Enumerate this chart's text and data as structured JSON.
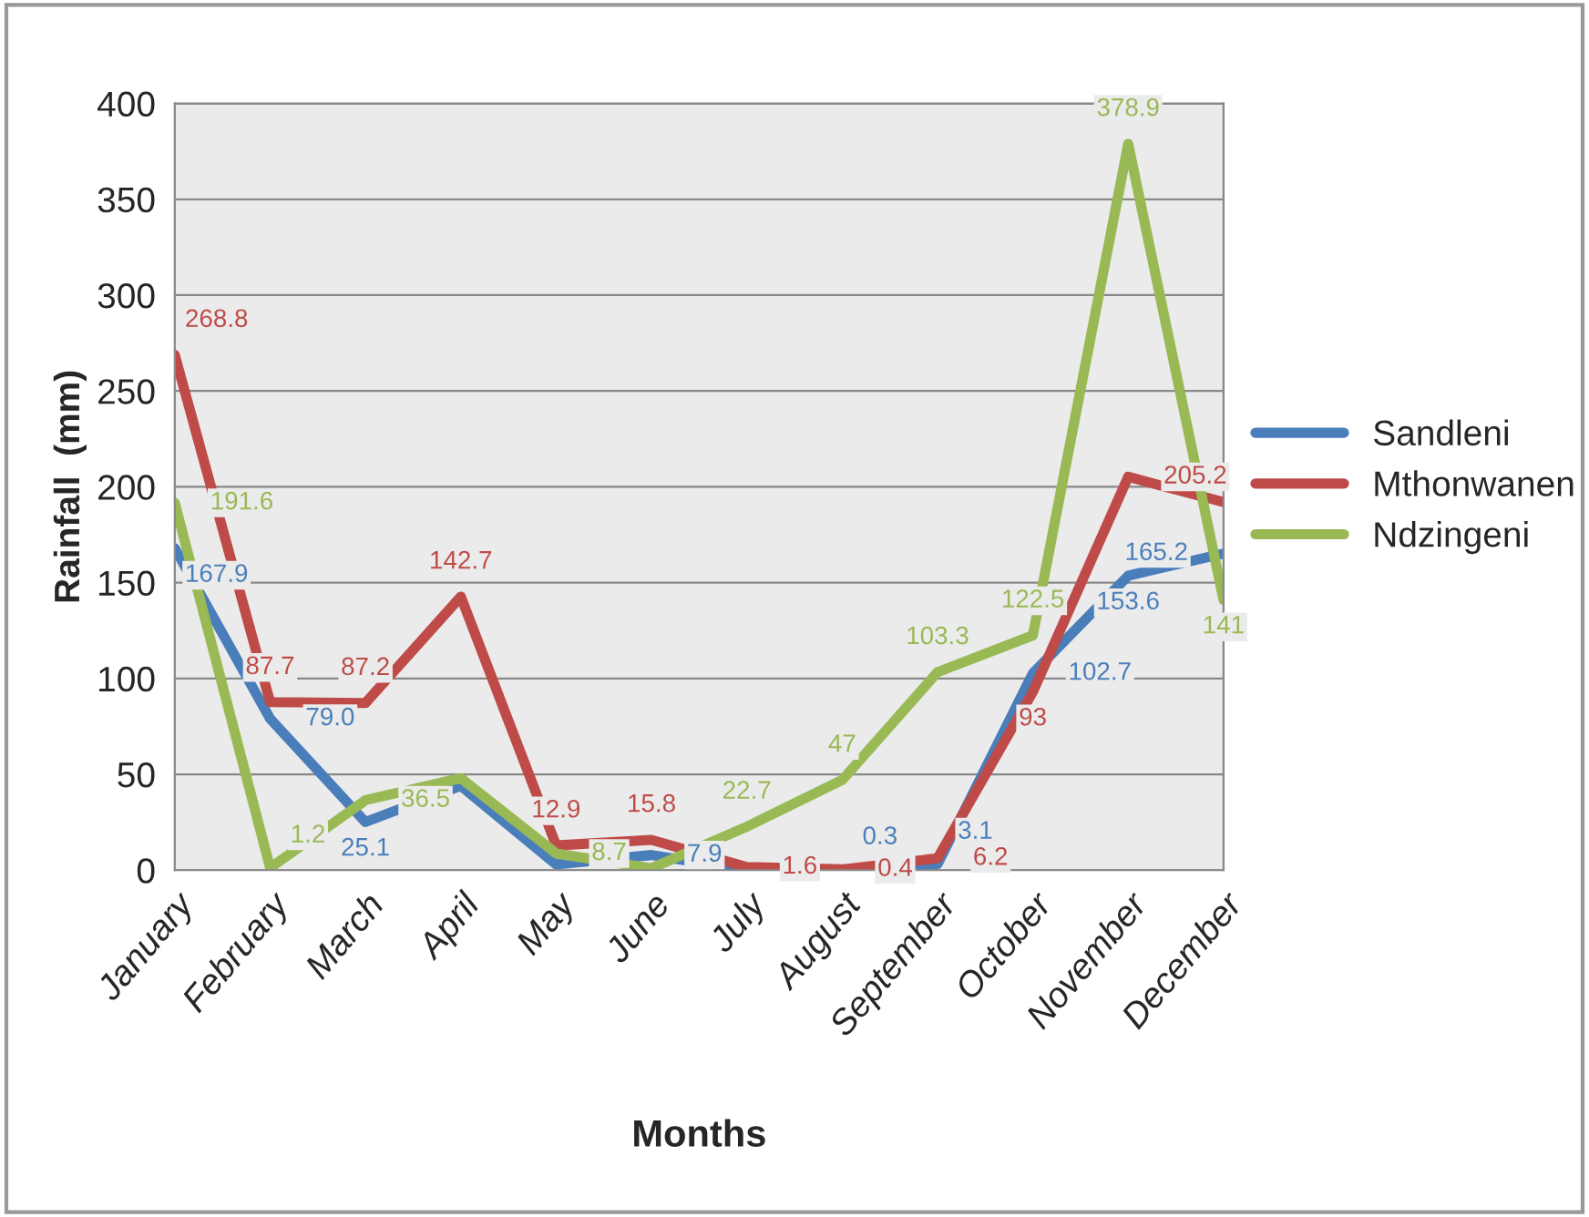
{
  "chart_data": {
    "type": "line",
    "xlabel": "Months",
    "ylabel": "Rainfall  (mm)",
    "categories": [
      "January",
      "February",
      "March",
      "April",
      "May",
      "June",
      "July",
      "August",
      "September",
      "October",
      "November",
      "December"
    ],
    "series": [
      {
        "name": "Sandleni",
        "color": "#4a7ebb",
        "values": [
          167.9,
          79.0,
          25.1,
          44,
          3,
          7.9,
          0,
          0.3,
          3.1,
          102.7,
          153.6,
          165.2
        ],
        "value_labels": [
          "167.9",
          "79.0",
          "25.1",
          null,
          null,
          "7.9",
          null,
          "0.3",
          "3.1",
          "102.7",
          "153.6",
          "165.2"
        ]
      },
      {
        "name": "Mthonwanen",
        "color": "#be4b48",
        "values": [
          268.8,
          87.7,
          87.2,
          142.7,
          12.9,
          15.8,
          1.6,
          0.4,
          6.2,
          93,
          205.2,
          192
        ],
        "value_labels": [
          "268.8",
          "87.7",
          "87.2",
          "142.7",
          "12.9",
          "15.8",
          "1.6",
          "0.4",
          "6.2",
          "93",
          "205.2",
          null
        ]
      },
      {
        "name": "Ndzingeni",
        "color": "#98b954",
        "values": [
          191.6,
          1.2,
          36.5,
          48,
          8.7,
          1,
          22.7,
          47,
          103.3,
          122.5,
          378.9,
          141
        ],
        "value_labels": [
          "191.6",
          "1.2",
          "36.5",
          null,
          "8.7",
          null,
          "22.7",
          "47",
          "103.3",
          "122.5",
          "378.9",
          "141"
        ]
      }
    ],
    "ylim": [
      0,
      400
    ],
    "yticks": [
      0,
      50,
      100,
      150,
      200,
      250,
      300,
      350,
      400
    ],
    "grid": "y",
    "legend": "right",
    "marker": "none",
    "line_style": "solid"
  }
}
